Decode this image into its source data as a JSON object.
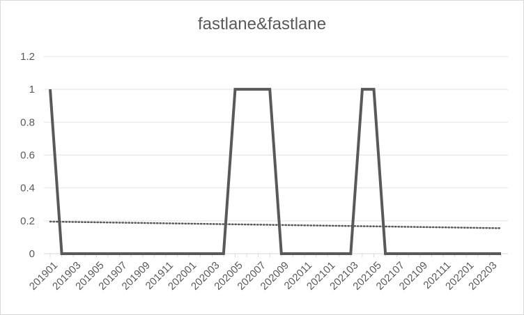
{
  "chart_data": {
    "type": "line",
    "title": "fastlane&fastlane",
    "xlabel": "",
    "ylabel": "",
    "ylim": [
      0,
      1.2
    ],
    "yticks": [
      "0",
      "0.2",
      "0.4",
      "0.6",
      "0.8",
      "1",
      "1.2"
    ],
    "x_tick_labels": [
      "201901",
      "201903",
      "201905",
      "201907",
      "201909",
      "201911",
      "202001",
      "202003",
      "202005",
      "202007",
      "202009",
      "202011",
      "202101",
      "202103",
      "202105",
      "202107",
      "202109",
      "202111",
      "202201",
      "202203"
    ],
    "x": [
      "201901",
      "201902",
      "201903",
      "201904",
      "201905",
      "201906",
      "201907",
      "201908",
      "201909",
      "201910",
      "201911",
      "201912",
      "202001",
      "202002",
      "202003",
      "202004",
      "202005",
      "202006",
      "202007",
      "202008",
      "202009",
      "202010",
      "202011",
      "202012",
      "202101",
      "202102",
      "202103",
      "202104",
      "202105",
      "202106",
      "202107",
      "202108",
      "202109",
      "202110",
      "202111",
      "202112",
      "202201",
      "202202",
      "202203",
      "202204"
    ],
    "series": [
      {
        "values": [
          1,
          0,
          0,
          0,
          0,
          0,
          0,
          0,
          0,
          0,
          0,
          0,
          0,
          0,
          0,
          0,
          1,
          1,
          1,
          1,
          0,
          0,
          0,
          0,
          0,
          0,
          0,
          1,
          1,
          0,
          0,
          0,
          0,
          0,
          0,
          0,
          0,
          0,
          0,
          0
        ],
        "color": "#595959",
        "style": "solid"
      }
    ],
    "trendline": {
      "type": "linear",
      "start": 0.195,
      "end": 0.155,
      "color": "#595959",
      "style": "dotted"
    },
    "grid": true,
    "legend": "none"
  }
}
